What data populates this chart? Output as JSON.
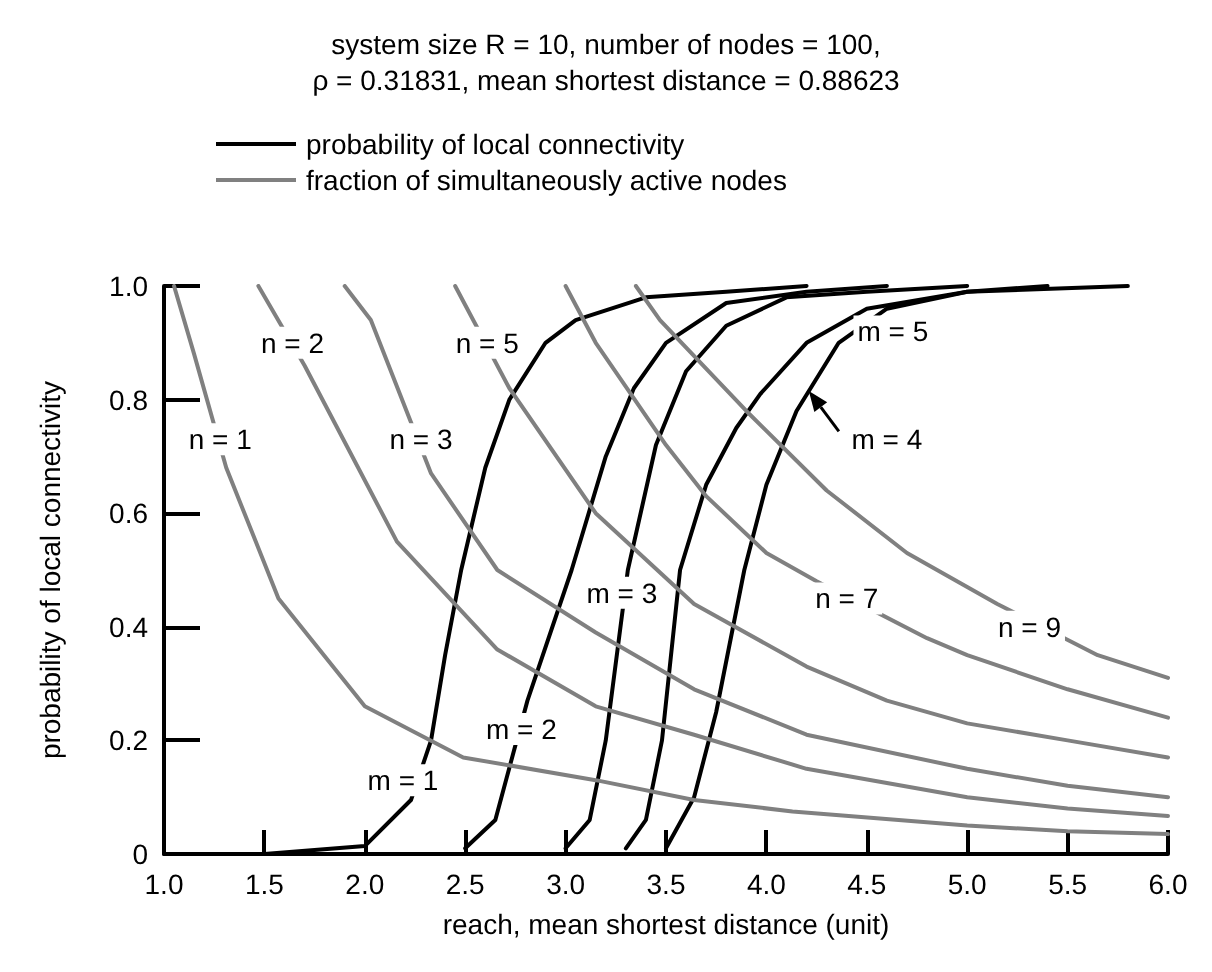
{
  "chart_data": {
    "type": "line",
    "title": "system size R = 10, number of nodes = 100,",
    "subtitle": "ρ = 0.31831, mean shortest distance = 0.88623",
    "xlabel": "reach, mean shortest distance (unit)",
    "ylabel": "probability of local connectivity",
    "xlim": [
      1,
      6
    ],
    "ylim": [
      0,
      1
    ],
    "xticks": [
      {
        "value": 1,
        "label": "1.0"
      },
      1.5,
      {
        "value": 2,
        "label": "2.0"
      },
      2.5,
      {
        "value": 3,
        "label": "3.0"
      },
      3.5,
      {
        "value": 4,
        "label": "4.0"
      },
      4.5,
      {
        "value": 5,
        "label": "5.0"
      },
      5.5,
      {
        "value": 6,
        "label": "6.0"
      }
    ],
    "yticks": [
      0,
      0.2,
      0.4,
      0.6,
      0.8,
      {
        "value": 1,
        "label": "1.0"
      }
    ],
    "grid": false,
    "legend": "top left",
    "marker": "none",
    "line_style": "solid",
    "series": [
      {
        "name": "probability of local connectivity",
        "color": "#000000",
        "x": [
          1.5,
          2,
          2.23,
          2.33,
          2.4,
          2.48,
          2.6,
          2.72,
          2.9,
          3.05,
          3.4,
          3.8,
          4.2
        ],
        "values": [
          0,
          0.014,
          0.095,
          0.2,
          0.35,
          0.5,
          0.68,
          0.8,
          0.9,
          0.94,
          0.98,
          0.99,
          1
        ]
      },
      {
        "color": "#000000",
        "x": [
          2.5,
          2.65,
          2.81,
          3.03,
          3.2,
          3.34,
          3.5,
          3.8,
          4.2,
          4.6
        ],
        "values": [
          0.01,
          0.06,
          0.27,
          0.5,
          0.7,
          0.82,
          0.9,
          0.97,
          0.99,
          1
        ]
      },
      {
        "color": "#000000",
        "x": [
          3,
          3.12,
          3.2,
          3.31,
          3.45,
          3.6,
          3.8,
          4.1,
          4.5,
          5
        ],
        "values": [
          0.01,
          0.06,
          0.2,
          0.5,
          0.72,
          0.85,
          0.93,
          0.98,
          0.99,
          1
        ]
      },
      {
        "color": "#000000",
        "x": [
          3.3,
          3.4,
          3.48,
          3.57,
          3.7,
          3.85,
          3.97,
          4.2,
          4.5,
          5,
          5.4
        ],
        "values": [
          0.01,
          0.06,
          0.2,
          0.5,
          0.65,
          0.75,
          0.81,
          0.9,
          0.96,
          0.99,
          1
        ]
      },
      {
        "color": "#000000",
        "x": [
          3.5,
          3.64,
          3.75,
          3.89,
          4,
          4.15,
          4.36,
          4.6,
          5,
          5.8
        ],
        "values": [
          0.01,
          0.1,
          0.25,
          0.5,
          0.65,
          0.78,
          0.9,
          0.96,
          0.99,
          1
        ]
      },
      {
        "name": "fraction of simultaneously active nodes",
        "color": "#808080",
        "x": [
          1.05,
          1.15,
          1.31,
          1.57,
          2,
          2.49,
          3.15,
          3.64,
          4.13,
          5,
          5.5,
          6
        ],
        "values": [
          1,
          0.88,
          0.68,
          0.45,
          0.26,
          0.17,
          0.13,
          0.095,
          0.075,
          0.05,
          0.04,
          0.035
        ]
      },
      {
        "color": "#808080",
        "x": [
          1.47,
          1.7,
          2.16,
          2.66,
          3.15,
          3.64,
          4.2,
          5,
          5.5,
          6
        ],
        "values": [
          1,
          0.86,
          0.55,
          0.36,
          0.26,
          0.21,
          0.15,
          0.1,
          0.08,
          0.067
        ]
      },
      {
        "color": "#808080",
        "x": [
          1.9,
          2.03,
          2.33,
          2.66,
          3.15,
          3.64,
          4.2,
          5,
          5.5,
          6
        ],
        "values": [
          1,
          0.94,
          0.67,
          0.5,
          0.39,
          0.29,
          0.21,
          0.15,
          0.12,
          0.1
        ]
      },
      {
        "color": "#808080",
        "x": [
          2.45,
          2.72,
          3.15,
          3.64,
          4.2,
          4.6,
          5,
          5.5,
          6
        ],
        "values": [
          1,
          0.82,
          0.6,
          0.44,
          0.33,
          0.27,
          0.23,
          0.2,
          0.17
        ]
      },
      {
        "color": "#808080",
        "x": [
          3,
          3.15,
          3.5,
          3.7,
          4,
          4.25,
          4.8,
          5,
          5.5,
          6
        ],
        "values": [
          1,
          0.9,
          0.72,
          0.63,
          0.53,
          0.48,
          0.38,
          0.35,
          0.29,
          0.24
        ]
      },
      {
        "color": "#808080",
        "x": [
          3.35,
          3.47,
          3.9,
          4.3,
          4.7,
          5,
          5.15,
          5.65,
          6
        ],
        "values": [
          1,
          0.94,
          0.78,
          0.64,
          0.53,
          0.47,
          0.44,
          0.35,
          0.31
        ]
      }
    ],
    "annotations": [
      {
        "text": "n = 1",
        "x": 1.28,
        "y": 0.73
      },
      {
        "text": "n = 2",
        "x": 1.64,
        "y": 0.9
      },
      {
        "text": "n = 3",
        "x": 2.28,
        "y": 0.73
      },
      {
        "text": "n = 5",
        "x": 2.61,
        "y": 0.9
      },
      {
        "text": "n = 7",
        "x": 4.4,
        "y": 0.45
      },
      {
        "text": "n = 9",
        "x": 5.31,
        "y": 0.4
      },
      {
        "text": "m = 1",
        "x": 2.19,
        "y": 0.13
      },
      {
        "text": "m = 2",
        "x": 2.78,
        "y": 0.22
      },
      {
        "text": "m = 3",
        "x": 3.28,
        "y": 0.46
      },
      {
        "text": "m = 4",
        "x": 4.6,
        "y": 0.73
      },
      {
        "text": "m = 5",
        "x": 4.63,
        "y": 0.92
      }
    ]
  }
}
